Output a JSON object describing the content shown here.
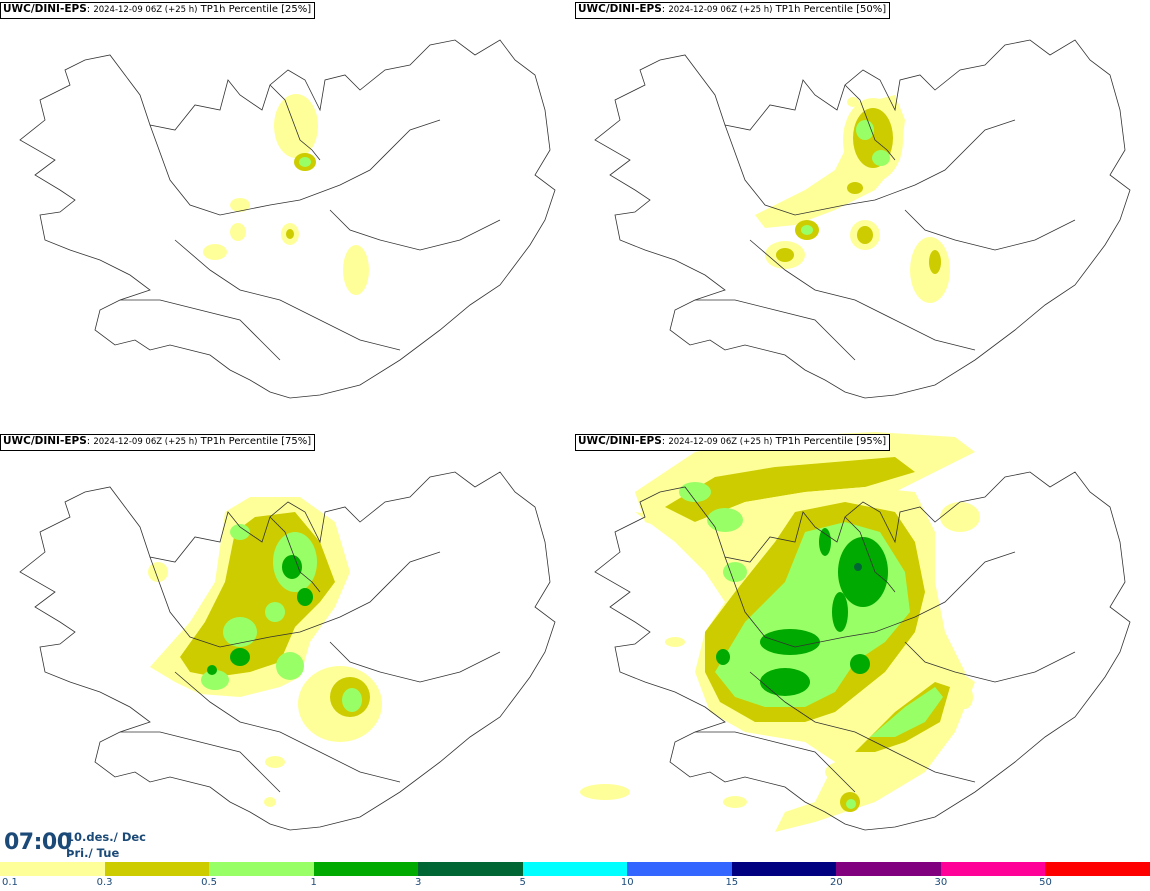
{
  "panels": [
    {
      "model": "UWC/DINI-EPS",
      "meta": "2024-12-09 06Z (+25 h)",
      "var": "TP1h Percentile [25%]"
    },
    {
      "model": "UWC/DINI-EPS",
      "meta": "2024-12-09 06Z (+25 h)",
      "var": "TP1h Percentile [50%]"
    },
    {
      "model": "UWC/DINI-EPS",
      "meta": "2024-12-09 06Z (+25 h)",
      "var": "TP1h Percentile [75%]"
    },
    {
      "model": "UWC/DINI-EPS",
      "meta": "2024-12-09 06Z (+25 h)",
      "var": "TP1h Percentile [95%]"
    }
  ],
  "time": {
    "clock": "07:00",
    "date": "10.des./ Dec",
    "weekday": "Þri./ Tue"
  },
  "legend": {
    "colors": [
      "#ffff99",
      "#cccc00",
      "#99ff66",
      "#00aa00",
      "#006633",
      "#00ffff",
      "#3366ff",
      "#000080",
      "#800080",
      "#ff0099",
      "#ff0000"
    ],
    "ticks": [
      "0.1",
      "0.3",
      "0.5",
      "1",
      "3",
      "5",
      "10",
      "15",
      "20",
      "30",
      "50"
    ]
  }
}
